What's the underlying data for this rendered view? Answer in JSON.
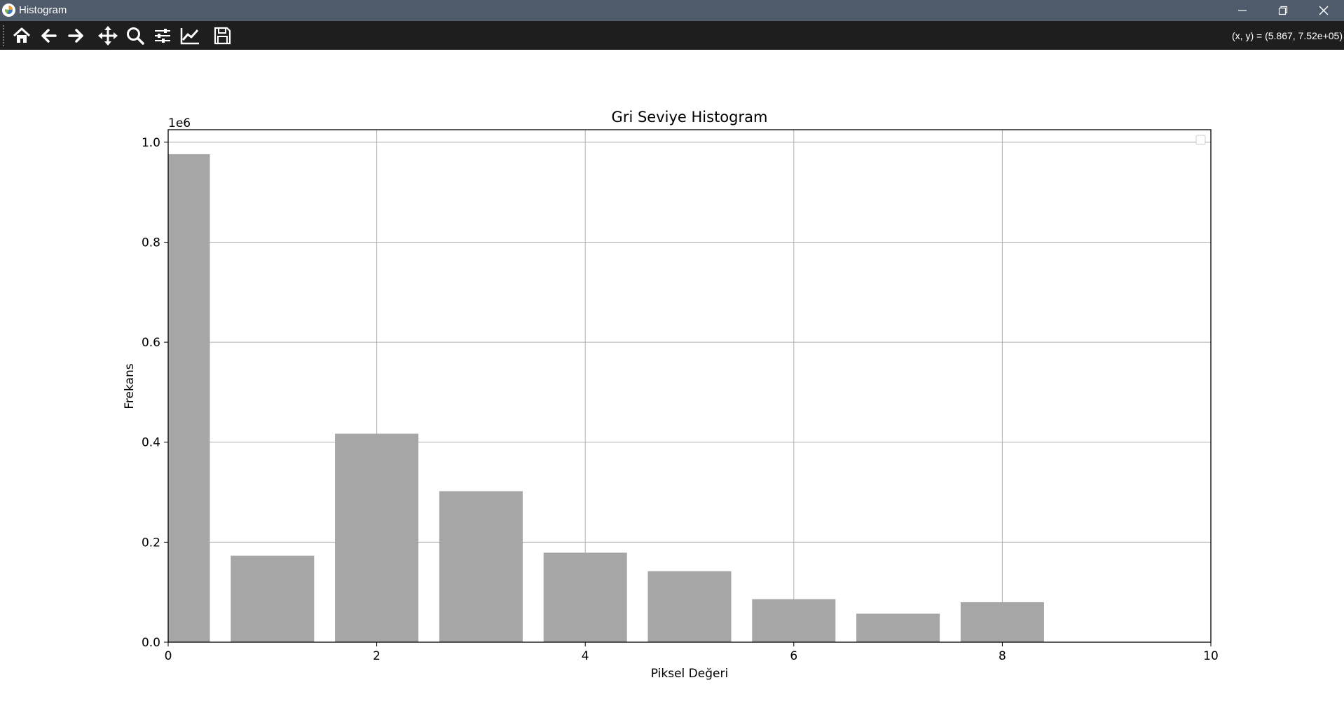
{
  "window": {
    "title": "Histogram",
    "controls": [
      "minimize",
      "restore",
      "close"
    ]
  },
  "toolbar": {
    "tools": [
      {
        "name": "home",
        "icon": "home-icon"
      },
      {
        "name": "back",
        "icon": "arrow-left-icon"
      },
      {
        "name": "forward",
        "icon": "arrow-right-icon"
      },
      {
        "name": "pan",
        "icon": "move-icon"
      },
      {
        "name": "zoom",
        "icon": "magnifier-icon"
      },
      {
        "name": "configure-subplots",
        "icon": "sliders-icon"
      },
      {
        "name": "edit-axes",
        "icon": "line-chart-icon"
      },
      {
        "name": "save",
        "icon": "floppy-disk-icon"
      }
    ],
    "coordinates": "(x, y) = (5.867, 7.52e+05)"
  },
  "chart_data": {
    "type": "bar",
    "title": "Gri Seviye Histogram",
    "xlabel": "Piksel Değeri",
    "ylabel": "Frekans",
    "offset_label": "1e6",
    "x": [
      0,
      1,
      2,
      3,
      4,
      5,
      6,
      7,
      8
    ],
    "values": [
      976000,
      173000,
      417000,
      302000,
      179000,
      142000,
      86000,
      57000,
      80000
    ],
    "bar_width": 0.8,
    "bar_color": "#a6a6a6",
    "xlim": [
      0,
      10
    ],
    "ylim": [
      0,
      1025000
    ],
    "xticks": [
      0,
      2,
      4,
      6,
      8,
      10
    ],
    "xtick_labels": [
      "0",
      "2",
      "4",
      "6",
      "8",
      "10"
    ],
    "yticks": [
      0,
      200000,
      400000,
      600000,
      800000,
      1000000
    ],
    "ytick_labels": [
      "0.0",
      "0.2",
      "0.4",
      "0.6",
      "0.8",
      "1.0"
    ],
    "grid": true,
    "legend": "top-right (empty)"
  }
}
